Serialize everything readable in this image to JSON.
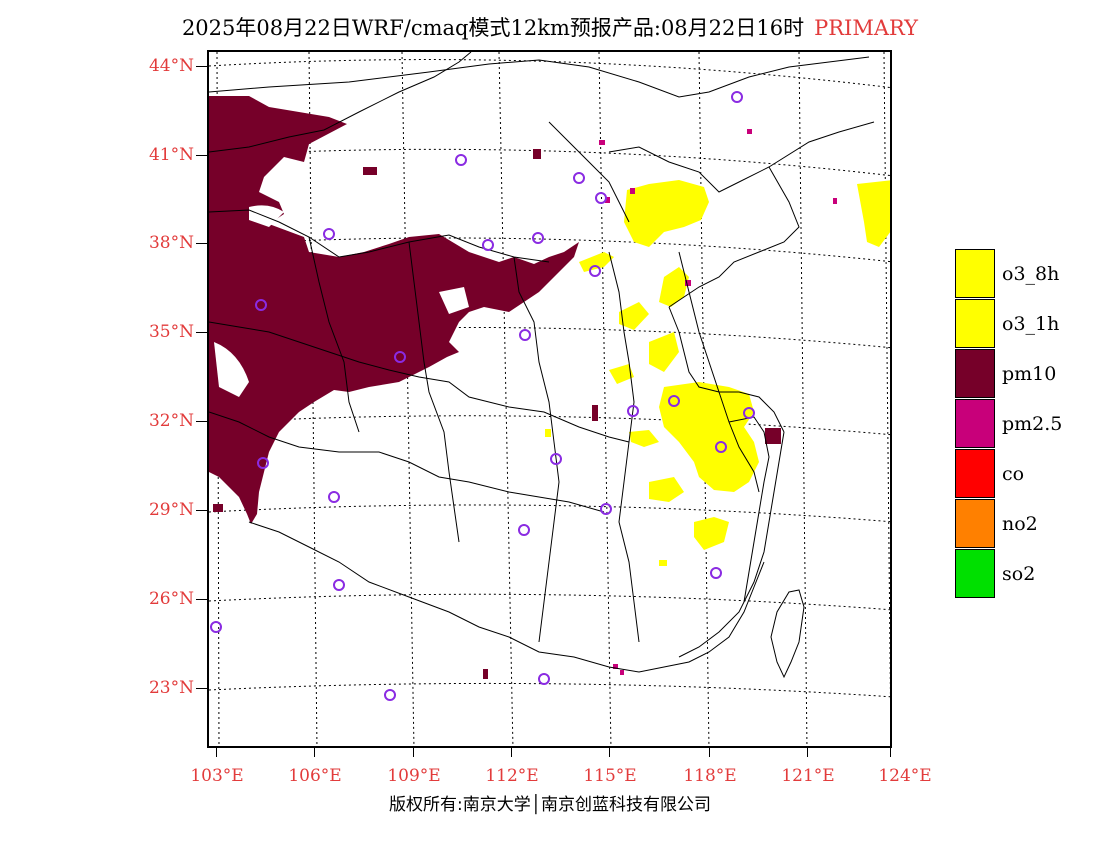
{
  "title": {
    "main": "2025年08月22日WRF/cmaq模式12km预报产品:08月22日16时",
    "primary_label": "PRIMARY",
    "primary_color": "#e23b3b"
  },
  "latitude_labels": [
    "44°N",
    "41°N",
    "38°N",
    "35°N",
    "32°N",
    "29°N",
    "26°N",
    "23°N"
  ],
  "longitude_labels": [
    "103°E",
    "106°E",
    "109°E",
    "112°E",
    "115°E",
    "118°E",
    "121°E",
    "124°E"
  ],
  "map_layers": {
    "pm10_color": "#760029",
    "o3_color": "#ffff00",
    "pm25_color": "#c8007a",
    "station_marker_color": "#8a2be2"
  },
  "legend": [
    {
      "label": "o3_8h",
      "color": "#ffff00"
    },
    {
      "label": "o3_1h",
      "color": "#ffff00"
    },
    {
      "label": "pm10",
      "color": "#760029"
    },
    {
      "label": "pm2.5",
      "color": "#c8007a"
    },
    {
      "label": "co",
      "color": "#ff0000"
    },
    {
      "label": "no2",
      "color": "#ff8000"
    },
    {
      "label": "so2",
      "color": "#00e000"
    }
  ],
  "copyright": "版权所有:南京大学│南京创蓝科技有限公司"
}
